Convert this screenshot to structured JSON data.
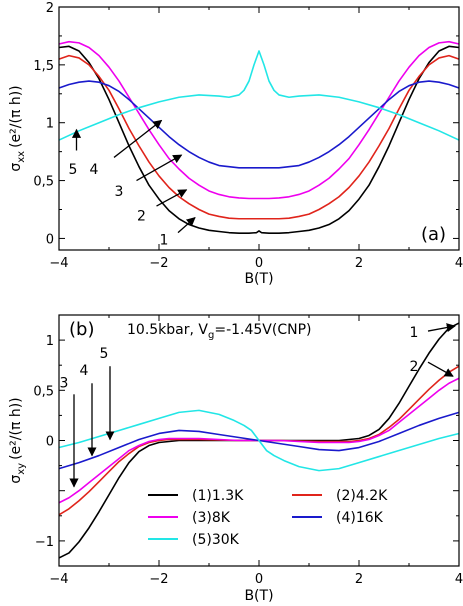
{
  "chart_data": [
    {
      "type": "line",
      "panel_label": "(a)",
      "xlabel": "B(T)",
      "ylabel_base": "σ",
      "ylabel_sub": "xx",
      "ylabel_unit": "(e²/(π h))",
      "xlim": [
        -4,
        4
      ],
      "ylim": [
        -0.1,
        2.0
      ],
      "xticks": [
        -4,
        -2,
        0,
        2,
        4
      ],
      "xtick_labels": [
        "−4",
        "−2",
        "0",
        "2",
        "4"
      ],
      "yticks": [
        0,
        0.5,
        1,
        1.5,
        2
      ],
      "ytick_labels": [
        "0",
        "0,5",
        "1",
        "1,5",
        "2"
      ],
      "series": [
        {
          "key": "1",
          "color": "#000000",
          "x": [
            -4,
            -3.8,
            -3.6,
            -3.4,
            -3.2,
            -3.0,
            -2.8,
            -2.6,
            -2.4,
            -2.2,
            -2.0,
            -1.8,
            -1.6,
            -1.4,
            -1.2,
            -1.0,
            -0.8,
            -0.6,
            -0.4,
            -0.2,
            -0.05,
            0,
            0.05,
            0.2,
            0.4,
            0.6,
            0.8,
            1.0,
            1.2,
            1.4,
            1.6,
            1.8,
            2.0,
            2.2,
            2.4,
            2.6,
            2.8,
            3.0,
            3.2,
            3.4,
            3.6,
            3.8,
            4
          ],
          "y": [
            1.65,
            1.66,
            1.62,
            1.52,
            1.38,
            1.2,
            1.0,
            0.8,
            0.62,
            0.46,
            0.34,
            0.24,
            0.17,
            0.12,
            0.09,
            0.07,
            0.06,
            0.05,
            0.045,
            0.045,
            0.05,
            0.065,
            0.05,
            0.045,
            0.045,
            0.05,
            0.06,
            0.07,
            0.09,
            0.12,
            0.17,
            0.24,
            0.34,
            0.46,
            0.62,
            0.8,
            1.0,
            1.2,
            1.38,
            1.52,
            1.62,
            1.66,
            1.65
          ]
        },
        {
          "key": "2",
          "color": "#e0241b",
          "x": [
            -4,
            -3.8,
            -3.6,
            -3.4,
            -3.2,
            -3.0,
            -2.8,
            -2.6,
            -2.4,
            -2.2,
            -2.0,
            -1.8,
            -1.6,
            -1.4,
            -1.2,
            -1.0,
            -0.8,
            -0.6,
            -0.4,
            -0.2,
            0,
            0.2,
            0.4,
            0.6,
            0.8,
            1.0,
            1.2,
            1.4,
            1.6,
            1.8,
            2.0,
            2.2,
            2.4,
            2.6,
            2.8,
            3.0,
            3.2,
            3.4,
            3.6,
            3.8,
            4
          ],
          "y": [
            1.55,
            1.58,
            1.56,
            1.5,
            1.4,
            1.28,
            1.12,
            0.95,
            0.8,
            0.66,
            0.54,
            0.44,
            0.36,
            0.3,
            0.25,
            0.21,
            0.19,
            0.175,
            0.17,
            0.17,
            0.17,
            0.17,
            0.17,
            0.175,
            0.19,
            0.21,
            0.25,
            0.3,
            0.36,
            0.44,
            0.54,
            0.66,
            0.8,
            0.95,
            1.12,
            1.28,
            1.4,
            1.5,
            1.56,
            1.58,
            1.55
          ]
        },
        {
          "key": "3",
          "color": "#ee00ee",
          "x": [
            -4,
            -3.8,
            -3.6,
            -3.4,
            -3.2,
            -3.0,
            -2.8,
            -2.6,
            -2.4,
            -2.2,
            -2.0,
            -1.8,
            -1.6,
            -1.4,
            -1.2,
            -1.0,
            -0.8,
            -0.6,
            -0.4,
            -0.2,
            0,
            0.2,
            0.4,
            0.6,
            0.8,
            1.0,
            1.2,
            1.4,
            1.6,
            1.8,
            2.0,
            2.2,
            2.4,
            2.6,
            2.8,
            3.0,
            3.2,
            3.4,
            3.6,
            3.8,
            4
          ],
          "y": [
            1.68,
            1.7,
            1.69,
            1.65,
            1.58,
            1.48,
            1.36,
            1.22,
            1.08,
            0.94,
            0.81,
            0.69,
            0.6,
            0.52,
            0.46,
            0.41,
            0.38,
            0.36,
            0.35,
            0.345,
            0.345,
            0.345,
            0.35,
            0.36,
            0.38,
            0.41,
            0.46,
            0.52,
            0.6,
            0.69,
            0.81,
            0.94,
            1.08,
            1.22,
            1.36,
            1.48,
            1.58,
            1.65,
            1.69,
            1.7,
            1.68
          ]
        },
        {
          "key": "4",
          "color": "#1a1acc",
          "x": [
            -4,
            -3.8,
            -3.6,
            -3.4,
            -3.2,
            -3.0,
            -2.8,
            -2.6,
            -2.4,
            -2.2,
            -2.0,
            -1.8,
            -1.6,
            -1.4,
            -1.2,
            -1.0,
            -0.8,
            -0.6,
            -0.4,
            -0.2,
            0,
            0.2,
            0.4,
            0.6,
            0.8,
            1.0,
            1.2,
            1.4,
            1.6,
            1.8,
            2.0,
            2.2,
            2.4,
            2.6,
            2.8,
            3.0,
            3.2,
            3.4,
            3.6,
            3.8,
            4
          ],
          "y": [
            1.3,
            1.33,
            1.35,
            1.36,
            1.35,
            1.32,
            1.27,
            1.2,
            1.12,
            1.04,
            0.96,
            0.88,
            0.81,
            0.75,
            0.7,
            0.66,
            0.63,
            0.62,
            0.61,
            0.61,
            0.61,
            0.61,
            0.61,
            0.62,
            0.63,
            0.66,
            0.7,
            0.75,
            0.81,
            0.88,
            0.96,
            1.04,
            1.12,
            1.2,
            1.27,
            1.32,
            1.35,
            1.36,
            1.35,
            1.33,
            1.3
          ]
        },
        {
          "key": "5",
          "color": "#22e6e6",
          "x": [
            -4,
            -3.6,
            -3.2,
            -2.8,
            -2.4,
            -2.0,
            -1.6,
            -1.2,
            -0.8,
            -0.6,
            -0.4,
            -0.3,
            -0.2,
            -0.1,
            0,
            0.1,
            0.2,
            0.3,
            0.4,
            0.6,
            0.8,
            1.2,
            1.6,
            2.0,
            2.4,
            2.8,
            3.2,
            3.6,
            4
          ],
          "y": [
            0.85,
            0.93,
            1.0,
            1.07,
            1.13,
            1.18,
            1.22,
            1.24,
            1.23,
            1.22,
            1.24,
            1.28,
            1.36,
            1.5,
            1.62,
            1.5,
            1.36,
            1.28,
            1.24,
            1.22,
            1.23,
            1.24,
            1.22,
            1.18,
            1.13,
            1.07,
            1.0,
            0.93,
            0.85
          ]
        }
      ],
      "annotations": [
        {
          "label": "1",
          "text_x": -1.9,
          "text_y": -0.01,
          "arrow_from": [
            -1.62,
            0.05
          ],
          "arrow_to": [
            -1.28,
            0.18
          ]
        },
        {
          "label": "2",
          "text_x": -2.35,
          "text_y": 0.2,
          "arrow_from": [
            -2.05,
            0.28
          ],
          "arrow_to": [
            -1.45,
            0.42
          ]
        },
        {
          "label": "3",
          "text_x": -2.8,
          "text_y": 0.41,
          "arrow_from": [
            -2.45,
            0.5
          ],
          "arrow_to": [
            -1.55,
            0.72
          ]
        },
        {
          "label": "4",
          "text_x": -3.3,
          "text_y": 0.6,
          "arrow_from": [
            -2.9,
            0.7
          ],
          "arrow_to": [
            -1.95,
            1.02
          ]
        },
        {
          "label": "5",
          "text_x": -3.72,
          "text_y": 0.6,
          "arrow_from": [
            -3.65,
            0.76
          ],
          "arrow_to": [
            -3.65,
            0.94
          ]
        }
      ]
    },
    {
      "type": "line",
      "panel_label": "(b)",
      "title": "10.5kbar, V",
      "title_sub": "g",
      "title_rest": "=-1.45V(CNP)",
      "xlabel": "B(T)",
      "ylabel_base": "σ",
      "ylabel_sub": "xy",
      "ylabel_unit": "(e²/(π h))",
      "xlim": [
        -4,
        4
      ],
      "ylim": [
        -1.25,
        1.25
      ],
      "xticks": [
        -4,
        -2,
        0,
        2,
        4
      ],
      "xtick_labels": [
        "−4",
        "−2",
        "0",
        "2",
        "4"
      ],
      "yticks": [
        -1,
        -0.5,
        0,
        0.5,
        1
      ],
      "ytick_labels": [
        "−1",
        "",
        "0",
        "0,5",
        "1"
      ],
      "series": [
        {
          "key": "1",
          "name": "(1)1.3K",
          "color": "#000000",
          "x": [
            -4,
            -3.8,
            -3.6,
            -3.4,
            -3.2,
            -3.0,
            -2.8,
            -2.6,
            -2.4,
            -2.2,
            -2.0,
            -1.8,
            -1.6,
            -1.2,
            -0.8,
            -0.4,
            0,
            0.4,
            0.8,
            1.2,
            1.6,
            1.8,
            2.0,
            2.2,
            2.4,
            2.6,
            2.8,
            3.0,
            3.2,
            3.4,
            3.6,
            3.8,
            4
          ],
          "y": [
            -1.17,
            -1.12,
            -1.01,
            -0.87,
            -0.71,
            -0.54,
            -0.37,
            -0.22,
            -0.11,
            -0.05,
            -0.02,
            -0.01,
            0,
            0,
            0,
            0,
            0,
            0,
            0,
            0,
            0,
            0.01,
            0.02,
            0.05,
            0.11,
            0.22,
            0.37,
            0.54,
            0.71,
            0.87,
            1.01,
            1.12,
            1.17
          ]
        },
        {
          "key": "2",
          "name": "(2)4.2K",
          "color": "#e0241b",
          "x": [
            -4,
            -3.8,
            -3.6,
            -3.4,
            -3.2,
            -3.0,
            -2.8,
            -2.6,
            -2.4,
            -2.2,
            -2.0,
            -1.8,
            -1.6,
            -1.2,
            -0.8,
            -0.4,
            0,
            0.4,
            0.8,
            1.2,
            1.6,
            1.8,
            2.0,
            2.2,
            2.4,
            2.6,
            2.8,
            3.0,
            3.2,
            3.4,
            3.6,
            3.8,
            4
          ],
          "y": [
            -0.74,
            -0.68,
            -0.6,
            -0.51,
            -0.41,
            -0.31,
            -0.21,
            -0.13,
            -0.06,
            -0.02,
            0,
            0.01,
            0.01,
            0.01,
            0.005,
            0,
            0,
            0,
            -0.005,
            -0.01,
            -0.01,
            -0.01,
            0,
            0.02,
            0.06,
            0.13,
            0.21,
            0.31,
            0.41,
            0.51,
            0.6,
            0.68,
            0.74
          ]
        },
        {
          "key": "3",
          "name": "(3)8K",
          "color": "#ee00ee",
          "x": [
            -4,
            -3.8,
            -3.6,
            -3.4,
            -3.2,
            -3.0,
            -2.8,
            -2.6,
            -2.4,
            -2.2,
            -2.0,
            -1.8,
            -1.6,
            -1.2,
            -0.8,
            -0.4,
            0,
            0.4,
            0.8,
            1.2,
            1.6,
            1.8,
            2.0,
            2.2,
            2.4,
            2.6,
            2.8,
            3.0,
            3.2,
            3.4,
            3.6,
            3.8,
            4
          ],
          "y": [
            -0.62,
            -0.57,
            -0.5,
            -0.42,
            -0.34,
            -0.26,
            -0.18,
            -0.1,
            -0.05,
            -0.01,
            0.01,
            0.02,
            0.02,
            0.02,
            0.01,
            0,
            0,
            0,
            -0.01,
            -0.02,
            -0.02,
            -0.02,
            -0.01,
            0.01,
            0.05,
            0.1,
            0.18,
            0.26,
            0.34,
            0.42,
            0.5,
            0.57,
            0.62
          ]
        },
        {
          "key": "4",
          "name": "(4)16K",
          "color": "#1a1acc",
          "x": [
            -4,
            -3.6,
            -3.2,
            -2.8,
            -2.4,
            -2.0,
            -1.6,
            -1.2,
            -0.8,
            -0.4,
            0,
            0.4,
            0.8,
            1.2,
            1.6,
            2.0,
            2.4,
            2.8,
            3.2,
            3.6,
            4
          ],
          "y": [
            -0.28,
            -0.22,
            -0.15,
            -0.07,
            0.01,
            0.07,
            0.1,
            0.09,
            0.06,
            0.03,
            0,
            -0.03,
            -0.06,
            -0.09,
            -0.1,
            -0.07,
            -0.01,
            0.07,
            0.15,
            0.22,
            0.28
          ]
        },
        {
          "key": "5",
          "name": "(5)30K",
          "color": "#22e6e6",
          "x": [
            -4,
            -3.6,
            -3.2,
            -2.8,
            -2.4,
            -2.0,
            -1.6,
            -1.2,
            -0.8,
            -0.5,
            -0.3,
            -0.15,
            0,
            0.15,
            0.3,
            0.5,
            0.8,
            1.2,
            1.6,
            2.0,
            2.4,
            2.8,
            3.2,
            3.6,
            4
          ],
          "y": [
            -0.07,
            -0.02,
            0.04,
            0.1,
            0.16,
            0.22,
            0.28,
            0.3,
            0.26,
            0.2,
            0.15,
            0.1,
            0,
            -0.1,
            -0.15,
            -0.2,
            -0.26,
            -0.3,
            -0.28,
            -0.22,
            -0.16,
            -0.1,
            -0.04,
            0.02,
            0.07
          ]
        }
      ],
      "annotations": [
        {
          "label": "1",
          "text_x": 3.1,
          "text_y": 1.08,
          "arrow_from": [
            3.38,
            1.09
          ],
          "arrow_to": [
            3.92,
            1.14
          ]
        },
        {
          "label": "2",
          "text_x": 3.1,
          "text_y": 0.74,
          "arrow_from": [
            3.38,
            0.78
          ],
          "arrow_to": [
            3.88,
            0.64
          ]
        },
        {
          "label": "3",
          "text_x": -3.9,
          "text_y": 0.58,
          "arrow_from": [
            -3.7,
            0.46
          ],
          "arrow_to": [
            -3.7,
            -0.46
          ]
        },
        {
          "label": "4",
          "text_x": -3.5,
          "text_y": 0.7,
          "arrow_from": [
            -3.34,
            0.57
          ],
          "arrow_to": [
            -3.34,
            -0.15
          ]
        },
        {
          "label": "5",
          "text_x": -3.1,
          "text_y": 0.87,
          "arrow_from": [
            -2.98,
            0.74
          ],
          "arrow_to": [
            -2.98,
            0.01
          ]
        }
      ],
      "legend_placement": "lower-center"
    }
  ]
}
